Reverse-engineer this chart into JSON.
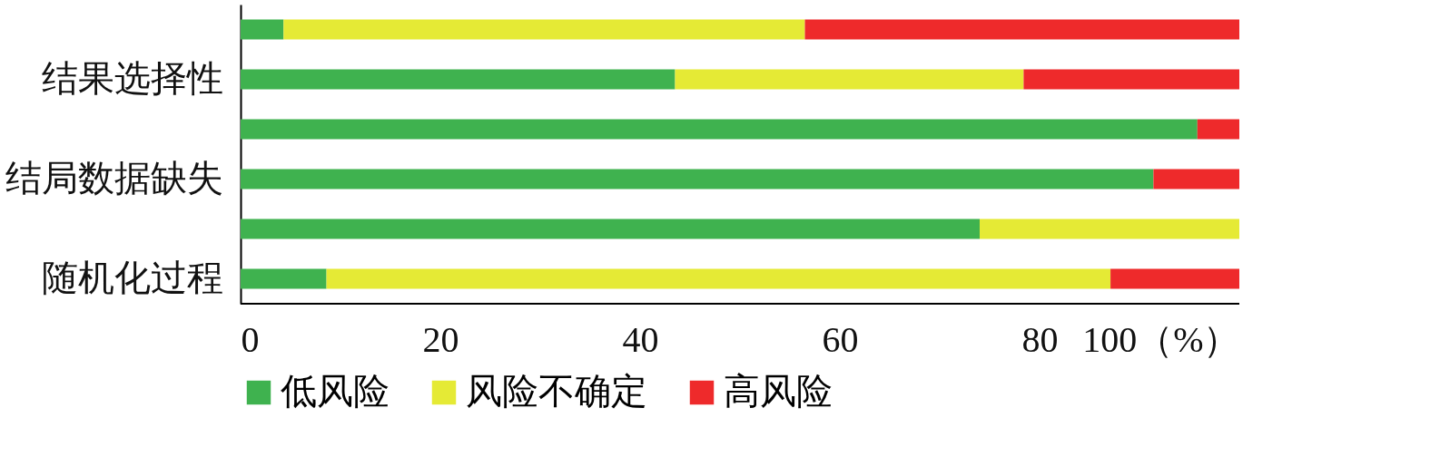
{
  "chart_data": {
    "type": "bar",
    "orientation": "horizontal",
    "stacked": true,
    "categories": [
      null,
      "结果选择性",
      null,
      "结局数据缺失",
      null,
      "随机化过程"
    ],
    "series": [
      {
        "name": "低风险",
        "color": "#3fb24f",
        "values": [
          4.3,
          43.5,
          95.8,
          91.4,
          74.0,
          8.6
        ]
      },
      {
        "name": "风险不确定",
        "color": "#e5ea35",
        "values": [
          52.2,
          34.9,
          0,
          0,
          26.0,
          78.5
        ]
      },
      {
        "name": "高风险",
        "color": "#ee2a2b",
        "values": [
          43.5,
          21.6,
          4.2,
          8.6,
          0,
          12.9
        ]
      }
    ],
    "xlim": [
      0,
      100
    ],
    "xticks": [
      0,
      20,
      40,
      60,
      80,
      {
        "value": 100,
        "label": "100（%）"
      }
    ],
    "legend": "bottom",
    "grid": false
  }
}
